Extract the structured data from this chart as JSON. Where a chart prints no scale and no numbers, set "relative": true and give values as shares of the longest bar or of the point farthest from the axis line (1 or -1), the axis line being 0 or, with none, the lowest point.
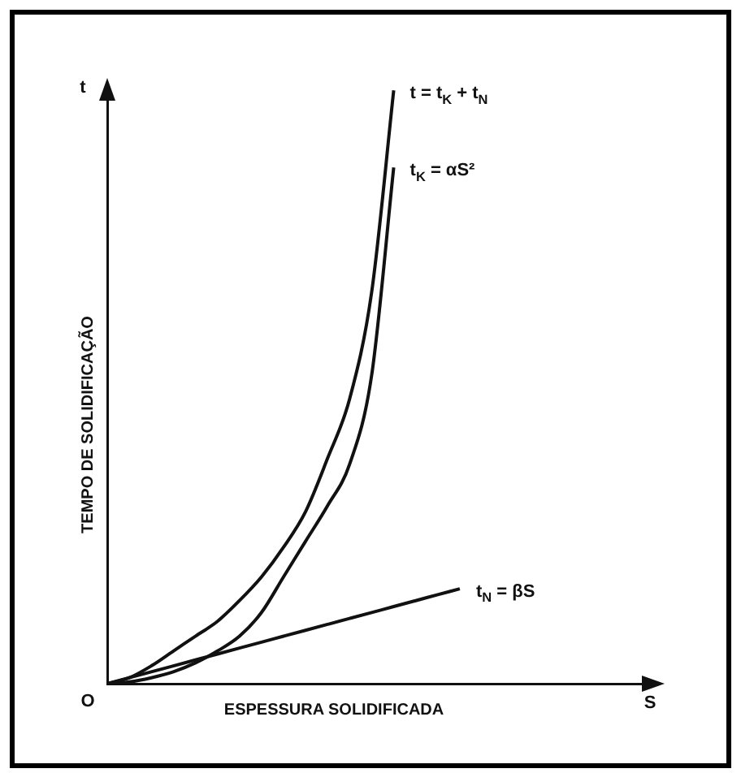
{
  "chart_data": {
    "type": "line",
    "relative": true,
    "xlabel": "ESPESSURA SOLIDIFICADA",
    "ylabel": "TEMPO DE SOLIDIFICAÇÃO",
    "annotations": [
      "t",
      "S",
      "O"
    ],
    "legend": false,
    "grid": false,
    "marker": "none",
    "line_style": "solid",
    "tick_labels": false,
    "categories": [
      null,
      null,
      null,
      null,
      null,
      null,
      null,
      null,
      null,
      null,
      null,
      null,
      null,
      null,
      null,
      null,
      null,
      null,
      null,
      null,
      null,
      null,
      null,
      null,
      null,
      null
    ],
    "series": [
      {
        "name": "t = t$_{K}$ + t$_{N}$",
        "color": "#111111",
        "values": [
          0,
          0.01,
          0.03,
          0.055,
          0.08,
          0.105,
          0.14,
          0.18,
          0.23,
          0.29,
          0.38,
          0.48,
          0.66,
          1,
          null,
          null,
          null,
          null,
          null,
          null,
          null,
          null,
          null,
          null,
          null,
          null
        ]
      },
      {
        "name": "t$_{K}$ = αS²",
        "color": "#111111",
        "values": [
          0,
          0.003,
          0.01,
          0.02,
          0.035,
          0.055,
          0.08,
          0.12,
          0.18,
          0.24,
          0.3,
          0.37,
          0.52,
          0.87,
          null,
          null,
          null,
          null,
          null,
          null,
          null,
          null,
          null,
          null,
          null,
          null
        ]
      },
      {
        "name": "t$_{N}$ = βS",
        "color": "#111111",
        "values": [
          0,
          0.01,
          0.02,
          0.03,
          0.04,
          0.05,
          0.06,
          0.07,
          0.08,
          0.09,
          0.1,
          0.11,
          0.12,
          0.13,
          0.14,
          0.15,
          0.16,
          null,
          null,
          null,
          null,
          null,
          null,
          null,
          null,
          null
        ]
      }
    ]
  }
}
